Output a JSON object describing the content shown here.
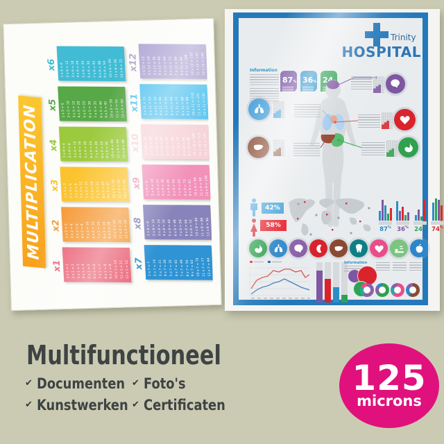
{
  "background_color": "#cbcbb3",
  "caption": {
    "title": "Multifunctioneel",
    "check_glyph": "✔",
    "features": [
      "Documenten",
      "Kunstwerken",
      "Foto's",
      "Certificaten"
    ]
  },
  "badge": {
    "value": "125",
    "unit": "microns",
    "color": "#e0117c"
  },
  "poster_multiplication": {
    "title": "MULTIPLICATION",
    "banner_colors": [
      "#f8a11e",
      "#fcc72f"
    ],
    "tables": [
      {
        "label": "x1",
        "color": "#ea6276",
        "rows": [
          "1 x 1 = 1",
          "2 x 1 = 2",
          "3 x 1 = 3",
          "4 x 1 = 4",
          "5 x 1 = 5",
          "6 x 1 = 6",
          "7 x 1 = 7",
          "8 x 1 = 8",
          "9 x 1 = 9",
          "10 x 1 = 10",
          "11 x 1 = 11",
          "12 x 1 = 12"
        ]
      },
      {
        "label": "x2",
        "color": "#f59a37",
        "rows": [
          "1 x 2 = 2",
          "2 x 2 = 4",
          "3 x 2 = 6",
          "4 x 2 = 8",
          "5 x 2 = 10",
          "6 x 2 = 12",
          "7 x 2 = 14",
          "8 x 2 = 16",
          "9 x 2 = 18",
          "10 x 2 = 20",
          "11 x 2 = 22",
          "12 x 2 = 24"
        ]
      },
      {
        "label": "x3",
        "color": "#fbc32d",
        "rows": [
          "1 x 3 = 3",
          "2 x 3 = 6",
          "3 x 3 = 9",
          "4 x 3 = 12",
          "5 x 3 = 15",
          "6 x 3 = 18",
          "7 x 3 = 21",
          "8 x 3 = 24",
          "9 x 3 = 27",
          "10 x 3 = 30",
          "11 x 3 = 33",
          "12 x 3 = 36"
        ]
      },
      {
        "label": "x4",
        "color": "#9bca3e",
        "rows": [
          "1 x 4 = 4",
          "2 x 4 = 8",
          "3 x 4 = 12",
          "4 x 4 = 16",
          "5 x 4 = 20",
          "6 x 4 = 24",
          "7 x 4 = 28",
          "8 x 4 = 32",
          "9 x 4 = 36",
          "10 x 4 = 40",
          "11 x 4 = 44",
          "12 x 4 = 48"
        ]
      },
      {
        "label": "x5",
        "color": "#57a847",
        "rows": [
          "1 x 5 = 5",
          "2 x 5 = 10",
          "3 x 5 = 15",
          "4 x 5 = 20",
          "5 x 5 = 25",
          "6 x 5 = 30",
          "7 x 5 = 35",
          "8 x 5 = 40",
          "9 x 5 = 45",
          "10 x 5 = 50",
          "11 x 5 = 55",
          "12 x 5 = 60"
        ]
      },
      {
        "label": "x6",
        "color": "#41bcd4",
        "rows": [
          "1 x 6 = 6",
          "2 x 6 = 12",
          "3 x 6 = 18",
          "4 x 6 = 24",
          "5 x 6 = 30",
          "6 x 6 = 36",
          "7 x 6 = 42",
          "8 x 6 = 48",
          "9 x 6 = 54",
          "10 x 6 = 60",
          "11 x 6 = 66",
          "12 x 6 = 72"
        ]
      },
      {
        "label": "x7",
        "color": "#2f93d4",
        "rows": [
          "1 x 7 = 7",
          "2 x 7 = 14",
          "3 x 7 = 21",
          "4 x 7 = 28",
          "5 x 7 = 35",
          "6 x 7 = 42",
          "7 x 7 = 49",
          "8 x 7 = 56",
          "9 x 7 = 63",
          "10 x 7 = 70",
          "11 x 7 = 77",
          "12 x 7 = 84"
        ]
      },
      {
        "label": "x8",
        "color": "#8884bb",
        "rows": [
          "1 x 8 = 8",
          "2 x 8 = 16",
          "3 x 8 = 24",
          "4 x 8 = 32",
          "5 x 8 = 40",
          "6 x 8 = 48",
          "7 x 8 = 56",
          "8 x 8 = 64",
          "9 x 8 = 72",
          "10 x 8 = 80",
          "11 x 8 = 88",
          "12 x 8 = 96"
        ]
      },
      {
        "label": "x9",
        "color": "#f291b9",
        "rows": [
          "1 x 9 = 9",
          "2 x 9 = 18",
          "3 x 9 = 27",
          "4 x 9 = 36",
          "5 x 9 = 45",
          "6 x 9 = 54",
          "7 x 9 = 63",
          "8 x 9 = 72",
          "9 x 9 = 81",
          "10 x 9 = 90",
          "11 x 9 = 99",
          "12 x 9 = 108"
        ]
      },
      {
        "label": "x10",
        "color": "#f6d3d8",
        "rows": [
          "1 x 10 = 10",
          "2 x 10 = 20",
          "3 x 10 = 30",
          "4 x 10 = 40",
          "5 x 10 = 50",
          "6 x 10 = 60",
          "7 x 10 = 70",
          "8 x 10 = 80",
          "9 x 10 = 90",
          "10 x 10 = 100",
          "11 x 10 = 110",
          "12 x 10 = 120"
        ]
      },
      {
        "label": "x11",
        "color": "#58c4f0",
        "rows": [
          "1 x 11 = 11",
          "2 x 11 = 22",
          "3 x 11 = 33",
          "4 x 11 = 44",
          "5 x 11 = 55",
          "6 x 11 = 66",
          "7 x 11 = 77",
          "8 x 11 = 88",
          "9 x 11 = 99",
          "10 x 11 = 110",
          "11 x 11 = 121",
          "12 x 11 = 132"
        ]
      },
      {
        "label": "x12",
        "color": "#b3a8d5",
        "rows": [
          "1 x 12 = 12",
          "2 x 12 = 24",
          "3 x 12 = 36",
          "4 x 12 = 48",
          "5 x 12 = 60",
          "6 x 12 = 72",
          "7 x 12 = 84",
          "8 x 12 = 96",
          "9 x 12 = 108",
          "10 x 12 = 120",
          "11 x 12 = 132",
          "12 x 12 = 144"
        ]
      }
    ]
  },
  "poster_hospital": {
    "frame_color": "#2579ba",
    "brand": {
      "name_top": "Trinity",
      "name_bottom": "HOSPITAL",
      "color": "#2c74b4"
    },
    "information_label": "Information",
    "information2_label": "Information",
    "stat_leaves": [
      {
        "value": "87",
        "unit": "%",
        "color": "#7c5aa5"
      },
      {
        "value": "36",
        "unit": "%",
        "color": "#2b8fc7"
      },
      {
        "value": "24",
        "unit": "%",
        "color": "#2ea254"
      }
    ],
    "gender_stats": [
      {
        "icon": "male",
        "label": "42%",
        "color": "#41a0d9"
      },
      {
        "icon": "female",
        "label": "58%",
        "color": "#e8232e"
      }
    ],
    "callouts": [
      {
        "organ": "brain",
        "color": "#7e57a3"
      },
      {
        "organ": "lungs",
        "color": "#4aa3dc"
      },
      {
        "organ": "heart",
        "color": "#d9232d"
      },
      {
        "organ": "liver",
        "color": "#8a4a32"
      },
      {
        "organ": "stomach",
        "color": "#2fa14f"
      }
    ],
    "mini_bar_stats": [
      {
        "label": "87",
        "unit": "%",
        "color": "#2b8fc7",
        "bars": [
          {
            "h": 14,
            "c": "#2b8fc7"
          },
          {
            "h": 30,
            "c": "#7e57a3"
          },
          {
            "h": 22,
            "c": "#2b8fc7"
          },
          {
            "h": 10,
            "c": "#2ea254"
          },
          {
            "h": 18,
            "c": "#d9292f"
          }
        ]
      },
      {
        "label": "36",
        "unit": "%",
        "color": "#7e57a3",
        "bars": [
          {
            "h": 28,
            "c": "#2b8fc7"
          },
          {
            "h": 14,
            "c": "#7e57a3"
          },
          {
            "h": 20,
            "c": "#d9292f"
          },
          {
            "h": 8,
            "c": "#2ea254"
          },
          {
            "h": 12,
            "c": "#7e57a3"
          }
        ]
      },
      {
        "label": "24",
        "unit": "%",
        "color": "#2ea254",
        "bars": [
          {
            "h": 8,
            "c": "#2b8fc7"
          },
          {
            "h": 16,
            "c": "#7e57a3"
          },
          {
            "h": 6,
            "c": "#2ea254"
          },
          {
            "h": 30,
            "c": "#d9292f"
          }
        ]
      },
      {
        "label": "74",
        "unit": "%",
        "color": "#d9292f",
        "bars": [
          {
            "h": 26,
            "c": "#2b8fc7"
          },
          {
            "h": 32,
            "c": "#2ea254"
          },
          {
            "h": 30,
            "c": "#7e57a3"
          },
          {
            "h": 22,
            "c": "#d9292f"
          }
        ]
      }
    ],
    "organ_icons": [
      {
        "name": "stomach",
        "color": "#2fa14f"
      },
      {
        "name": "lungs",
        "color": "#2d86c9"
      },
      {
        "name": "brain",
        "color": "#8b5fa8"
      },
      {
        "name": "kidney",
        "color": "#d8232d"
      },
      {
        "name": "liver",
        "color": "#8a4a32"
      },
      {
        "name": "tooth",
        "color": "#0f7f86"
      },
      {
        "name": "heart",
        "color": "#e84e8a"
      },
      {
        "name": "sleep",
        "color": "#7cc47f"
      },
      {
        "name": "apple",
        "color": "#2d86c9"
      }
    ],
    "bottom_bars": [
      {
        "color": "#7e57a3",
        "h": 46
      },
      {
        "color": "#d9232d",
        "h": 34
      },
      {
        "color": "#2b8fc7",
        "h": 22
      },
      {
        "color": "#2ea254",
        "h": 11
      }
    ],
    "bubbles": [
      {
        "color": "#7e57a3",
        "d": 18
      },
      {
        "color": "#d9232d",
        "d": 27
      },
      {
        "color": "#2ea254",
        "d": 21
      }
    ],
    "donuts": [
      {
        "base": "#8b5fa8",
        "seg1": "#2aa7a0",
        "seg2": "#e84e8a",
        "a1": 60,
        "a2": 22
      },
      {
        "base": "#2fa14f",
        "seg1": "#8b5fa8",
        "seg2": "#2d86c9",
        "a1": 65,
        "a2": 20
      },
      {
        "base": "#e84e8a",
        "seg1": "#2aa7a0",
        "seg2": "#8b5fa8",
        "a1": 62,
        "a2": 20
      },
      {
        "base": "#8a4a32",
        "seg1": "#2d86c9",
        "seg2": "#8b5fa8",
        "a1": 58,
        "a2": 24
      }
    ],
    "line_chart_colors": {
      "series1": "#d9292f",
      "series2": "#1f5fa8"
    }
  }
}
